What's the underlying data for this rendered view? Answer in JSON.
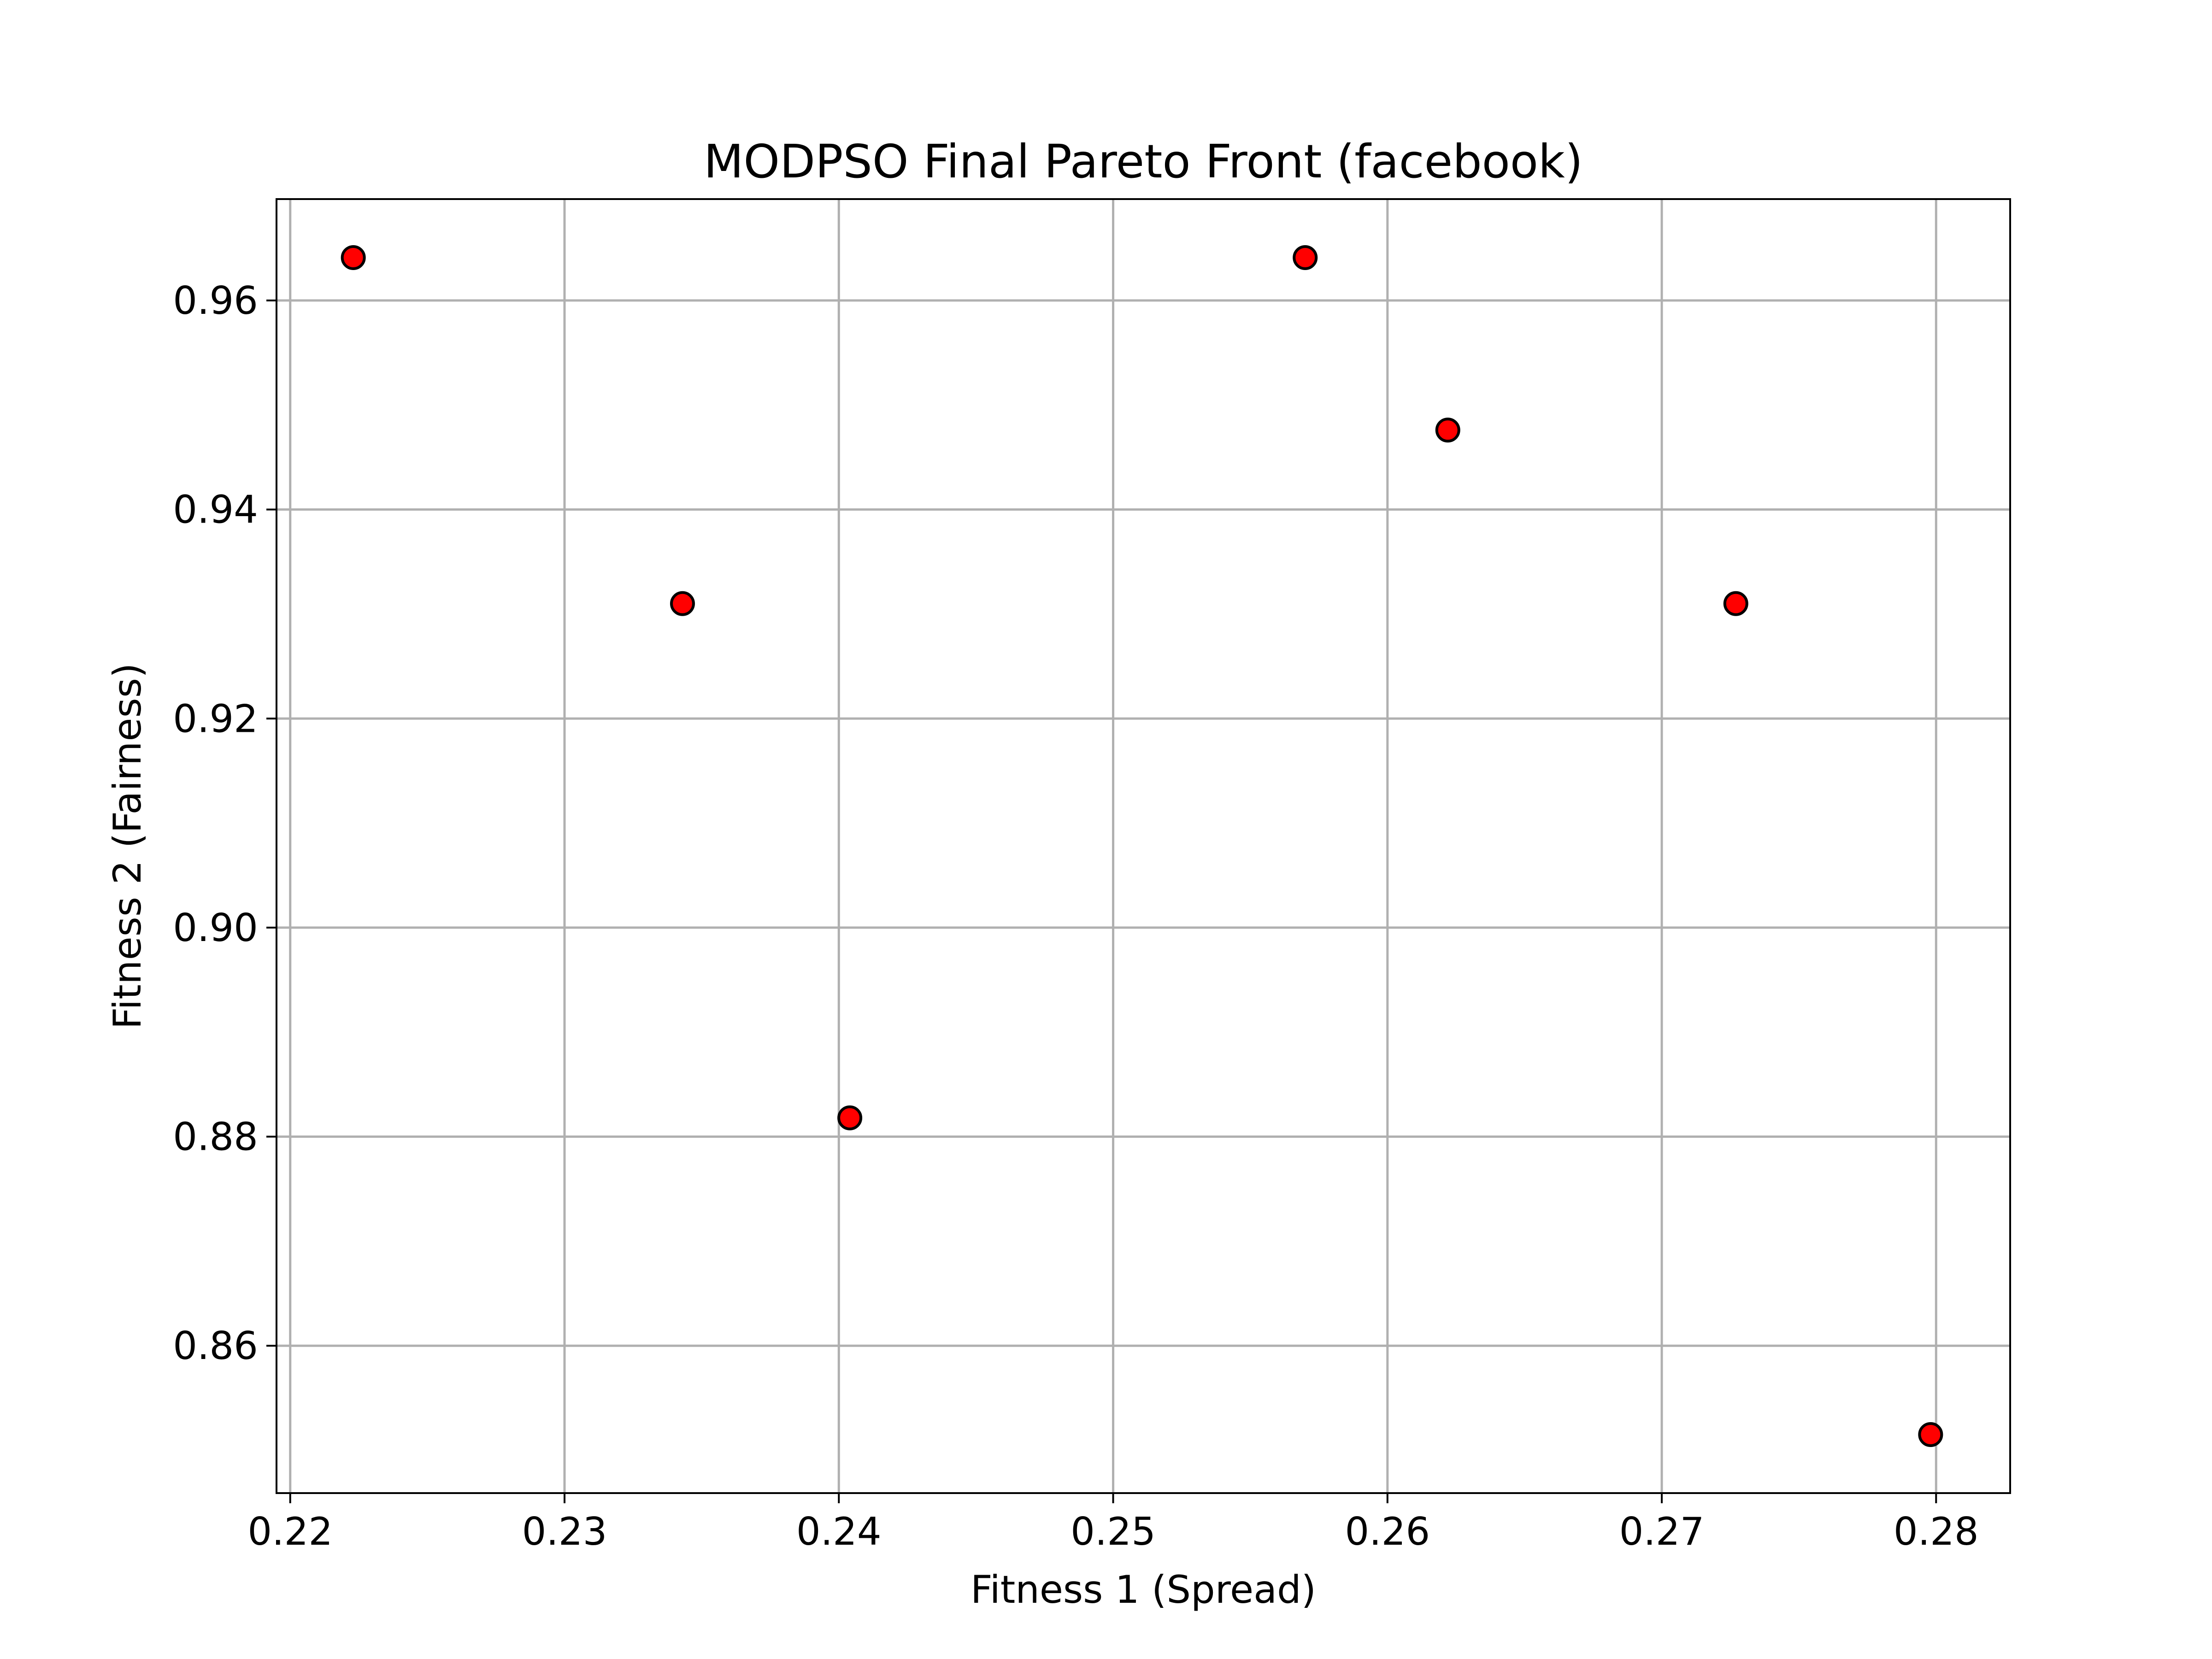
{
  "chart_data": {
    "type": "scatter",
    "title": "MODPSO Final Pareto Front (facebook)",
    "xlabel": "Fitness 1 (Spread)",
    "ylabel": "Fitness 2 (Fairness)",
    "xlim": [
      0.2195,
      0.2827
    ],
    "ylim": [
      0.8459,
      0.9697
    ],
    "xticks": [
      0.22,
      0.23,
      0.24,
      0.25,
      0.26,
      0.27,
      0.28
    ],
    "xtick_labels": [
      "0.22",
      "0.23",
      "0.24",
      "0.25",
      "0.26",
      "0.27",
      "0.28"
    ],
    "yticks": [
      0.86,
      0.88,
      0.9,
      0.92,
      0.94,
      0.96
    ],
    "ytick_labels": [
      "0.86",
      "0.88",
      "0.90",
      "0.92",
      "0.94",
      "0.96"
    ],
    "grid": true,
    "marker_color": "#ff0000",
    "marker_edge_color": "#000000",
    "points": [
      {
        "x": 0.2223,
        "y": 0.9641
      },
      {
        "x": 0.2343,
        "y": 0.931
      },
      {
        "x": 0.2404,
        "y": 0.8818
      },
      {
        "x": 0.257,
        "y": 0.9641
      },
      {
        "x": 0.2622,
        "y": 0.9476
      },
      {
        "x": 0.2727,
        "y": 0.931
      },
      {
        "x": 0.2798,
        "y": 0.8515
      }
    ]
  }
}
